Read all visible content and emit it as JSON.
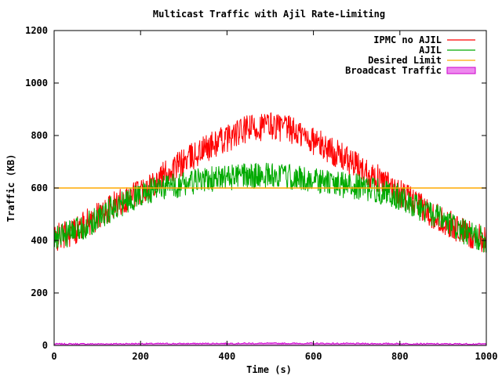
{
  "chart_data": {
    "type": "line",
    "title": "Multicast Traffic with Ajil Rate-Limiting",
    "xlabel": "Time (s)",
    "ylabel": "Traffic (KB)",
    "xlim": [
      0,
      1000
    ],
    "ylim": [
      0,
      1200
    ],
    "x_ticks": [
      0,
      200,
      400,
      600,
      800,
      1000
    ],
    "y_ticks": [
      0,
      200,
      400,
      600,
      800,
      1000,
      1200
    ],
    "grid": false,
    "legend_position": "top-right",
    "series": [
      {
        "name": "IPMC no AJIL",
        "color": "#ff0000",
        "x": [
          0,
          50,
          100,
          150,
          200,
          250,
          300,
          350,
          400,
          450,
          500,
          550,
          600,
          650,
          700,
          750,
          800,
          850,
          900,
          950,
          1000
        ],
        "y": [
          405,
          440,
          490,
          545,
          590,
          645,
          700,
          750,
          790,
          825,
          840,
          820,
          780,
          735,
          685,
          635,
          580,
          525,
          475,
          430,
          400
        ]
      },
      {
        "name": "AJIL",
        "color": "#00aa00",
        "x": [
          0,
          50,
          100,
          150,
          200,
          250,
          300,
          350,
          400,
          450,
          500,
          550,
          600,
          650,
          700,
          750,
          800,
          850,
          900,
          950,
          1000
        ],
        "y": [
          405,
          435,
          485,
          535,
          575,
          600,
          615,
          630,
          640,
          645,
          650,
          640,
          630,
          615,
          605,
          590,
          565,
          520,
          475,
          430,
          400
        ]
      },
      {
        "name": "Desired Limit",
        "color": "#ffaa00",
        "x": [
          0,
          1000
        ],
        "y": [
          600,
          600
        ]
      },
      {
        "name": "Broadcast Traffic",
        "color": "#cc00cc",
        "fill": "#ee88ee",
        "style": "filled",
        "x": [
          0,
          100,
          200,
          300,
          400,
          500,
          600,
          700,
          800,
          900,
          1000
        ],
        "y": [
          6,
          6,
          7,
          7,
          8,
          8,
          8,
          7,
          7,
          6,
          6
        ]
      }
    ]
  }
}
